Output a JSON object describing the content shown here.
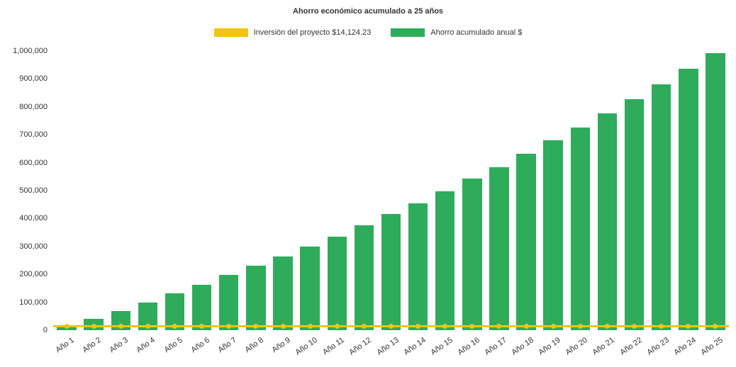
{
  "title": "Ahorro económico acumulado a 25 años",
  "legend": {
    "investment": {
      "label": "Inversión del proyecto $14,124.23",
      "color": "#F2C511"
    },
    "savings": {
      "label": "Ahorro acumulado anual $",
      "color": "#2EAC5C"
    }
  },
  "chart_data": {
    "type": "bar",
    "title": "Ahorro económico acumulado a 25 años",
    "xlabel": "",
    "ylabel": "",
    "ylim": [
      0,
      1000000
    ],
    "ytick_step": 100000,
    "ytick_labels": [
      "0",
      "100,000",
      "200,000",
      "300,000",
      "400,000",
      "500,000",
      "600,000",
      "700,000",
      "800,000",
      "900,000",
      "1,000,000"
    ],
    "grid": false,
    "legend_position": "top",
    "categories": [
      "Año 1",
      "Año 2",
      "Año 3",
      "Año 4",
      "Año 5",
      "Año 6",
      "Año 7",
      "Año 8",
      "Año 9",
      "Año 10",
      "Año 11",
      "Año 12",
      "Año 13",
      "Año 14",
      "Año 15",
      "Año 16",
      "Año 17",
      "Año 18",
      "Año 19",
      "Año 20",
      "Año 21",
      "Año 22",
      "Año 23",
      "Año 24",
      "Año 25"
    ],
    "series": [
      {
        "name": "Ahorro acumulado anual $",
        "type": "bar",
        "color": "#2EAC5C",
        "values": [
          15000,
          40000,
          68000,
          99000,
          131000,
          163000,
          197000,
          231000,
          265000,
          300000,
          336000,
          376000,
          416000,
          455000,
          498000,
          542000,
          585000,
          631000,
          679000,
          726000,
          776000,
          827000,
          880000,
          936000,
          993000
        ]
      },
      {
        "name": "Inversión del proyecto $14,124.23",
        "type": "line",
        "color": "#F2C511",
        "values": [
          14124.23,
          14124.23,
          14124.23,
          14124.23,
          14124.23,
          14124.23,
          14124.23,
          14124.23,
          14124.23,
          14124.23,
          14124.23,
          14124.23,
          14124.23,
          14124.23,
          14124.23,
          14124.23,
          14124.23,
          14124.23,
          14124.23,
          14124.23,
          14124.23,
          14124.23,
          14124.23,
          14124.23,
          14124.23
        ]
      }
    ]
  }
}
